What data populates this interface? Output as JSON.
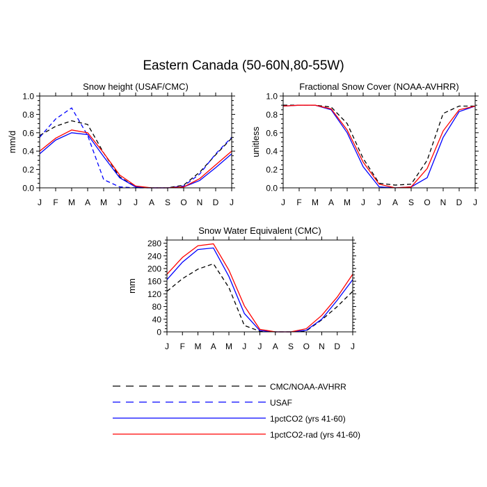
{
  "figure": {
    "title": "Eastern Canada (50-60N,80-55W)"
  },
  "chart_data": [
    {
      "type": "line",
      "title": "Snow height (USAF/CMC)",
      "xlabel": "",
      "ylabel": "mm/d",
      "x": [
        "J",
        "F",
        "M",
        "A",
        "M",
        "J",
        "J",
        "A",
        "S",
        "O",
        "N",
        "D",
        "J"
      ],
      "ylim": [
        0,
        1.0
      ],
      "yticks": [
        0.0,
        0.2,
        0.4,
        0.6,
        0.8,
        1.0
      ],
      "ytick_labels": [
        "0.0",
        "0.2",
        "0.4",
        "0.6",
        "0.8",
        "1.0"
      ],
      "series": [
        {
          "name": "CMC/NOAA-AVHRR",
          "color": "#000000",
          "dash": true,
          "values": [
            0.57,
            0.67,
            0.73,
            0.69,
            0.38,
            0.12,
            0.01,
            0.0,
            0.0,
            0.03,
            0.17,
            0.36,
            0.54
          ]
        },
        {
          "name": "USAF",
          "color": "#0000ff",
          "dash": true,
          "values": [
            0.55,
            0.75,
            0.87,
            0.57,
            0.09,
            0.01,
            0.0,
            0.0,
            0.0,
            0.02,
            0.15,
            0.37,
            0.55
          ]
        },
        {
          "name": "1pctCO2 (yrs 41-60)",
          "color": "#0000ff",
          "dash": false,
          "values": [
            0.37,
            0.52,
            0.6,
            0.58,
            0.34,
            0.11,
            0.01,
            0.0,
            0.0,
            0.01,
            0.08,
            0.22,
            0.37
          ]
        },
        {
          "name": "1pctCO2-rad (yrs 41-60)",
          "color": "#ff0000",
          "dash": false,
          "values": [
            0.4,
            0.54,
            0.63,
            0.6,
            0.38,
            0.14,
            0.02,
            0.0,
            0.0,
            0.01,
            0.1,
            0.25,
            0.4
          ]
        }
      ]
    },
    {
      "type": "line",
      "title": "Fractional Snow Cover (NOAA-AVHRR)",
      "xlabel": "",
      "ylabel": "unitless",
      "x": [
        "J",
        "F",
        "M",
        "A",
        "M",
        "J",
        "J",
        "A",
        "S",
        "O",
        "N",
        "D",
        "J"
      ],
      "ylim": [
        0,
        1.0
      ],
      "yticks": [
        0.0,
        0.2,
        0.4,
        0.6,
        0.8,
        1.0
      ],
      "ytick_labels": [
        "0.0",
        "0.2",
        "0.4",
        "0.6",
        "0.8",
        "1.0"
      ],
      "series": [
        {
          "name": "CMC/NOAA-AVHRR",
          "color": "#000000",
          "dash": true,
          "values": [
            0.9,
            0.9,
            0.9,
            0.88,
            0.7,
            0.32,
            0.05,
            0.03,
            0.04,
            0.3,
            0.81,
            0.89,
            0.89
          ]
        },
        {
          "name": "1pctCO2 (yrs 41-60)",
          "color": "#0000ff",
          "dash": false,
          "values": [
            0.89,
            0.9,
            0.9,
            0.85,
            0.6,
            0.23,
            0.01,
            0.0,
            0.01,
            0.11,
            0.55,
            0.83,
            0.89
          ]
        },
        {
          "name": "1pctCO2-rad (yrs 41-60)",
          "color": "#ff0000",
          "dash": false,
          "values": [
            0.89,
            0.9,
            0.9,
            0.86,
            0.63,
            0.28,
            0.04,
            0.0,
            0.01,
            0.21,
            0.62,
            0.85,
            0.89
          ]
        }
      ]
    },
    {
      "type": "line",
      "title": "Snow Water Equivalent (CMC)",
      "xlabel": "",
      "ylabel": "mm",
      "x": [
        "J",
        "F",
        "M",
        "A",
        "M",
        "J",
        "J",
        "A",
        "S",
        "O",
        "N",
        "D",
        "J"
      ],
      "ylim": [
        0,
        290
      ],
      "yticks": [
        0,
        40,
        80,
        120,
        160,
        200,
        240,
        280
      ],
      "ytick_labels": [
        "0",
        "40",
        "80",
        "120",
        "160",
        "200",
        "240",
        "280"
      ],
      "series": [
        {
          "name": "CMC/NOAA-AVHRR",
          "color": "#000000",
          "dash": true,
          "values": [
            128,
            168,
            198,
            215,
            140,
            20,
            2,
            0,
            0,
            3,
            38,
            80,
            128
          ]
        },
        {
          "name": "1pctCO2 (yrs 41-60)",
          "color": "#0000ff",
          "dash": false,
          "values": [
            165,
            220,
            260,
            265,
            175,
            58,
            4,
            0,
            0,
            5,
            40,
            100,
            165
          ]
        },
        {
          "name": "1pctCO2-rad (yrs 41-60)",
          "color": "#ff0000",
          "dash": false,
          "values": [
            182,
            235,
            272,
            278,
            195,
            82,
            8,
            0,
            0,
            10,
            52,
            110,
            182
          ]
        }
      ]
    }
  ],
  "legend": {
    "placement": "bottom-center",
    "items": [
      {
        "label": "CMC/NOAA-AVHRR",
        "color": "#000000",
        "dash": true
      },
      {
        "label": "USAF",
        "color": "#0000ff",
        "dash": true
      },
      {
        "label": "1pctCO2 (yrs 41-60)",
        "color": "#0000ff",
        "dash": false
      },
      {
        "label": "1pctCO2-rad (yrs 41-60)",
        "color": "#ff0000",
        "dash": false
      }
    ]
  }
}
